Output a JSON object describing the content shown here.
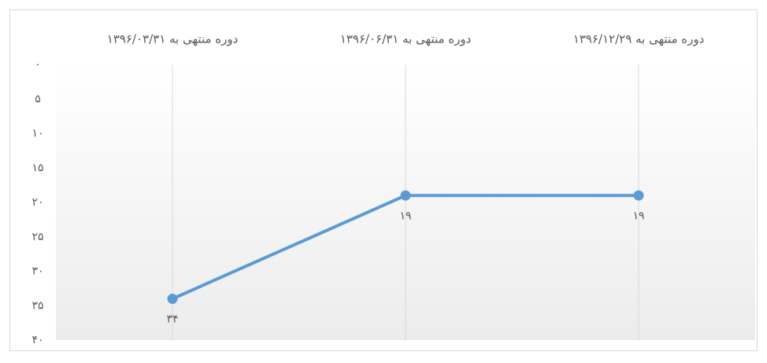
{
  "chart_data": {
    "type": "line",
    "categories": [
      "دوره منتهی به ۱۳۹۶/۰۳/۳۱",
      "دوره منتهی به ۱۳۹۶/۰۶/۳۱",
      "دوره منتهی به ۱۳۹۶/۱۲/۲۹"
    ],
    "series": [
      {
        "color": "#5b9bd5",
        "values": [
          34,
          19,
          19
        ],
        "value_labels": [
          "۳۴",
          "۱۹",
          "۱۹"
        ]
      }
    ],
    "ylim": [
      0,
      40
    ],
    "y_inverted": true,
    "yticks": [
      {
        "value": 0,
        "label": "۰"
      },
      {
        "value": 5,
        "label": "۵"
      },
      {
        "value": 10,
        "label": "۱۰"
      },
      {
        "value": 15,
        "label": "۱۵"
      },
      {
        "value": 20,
        "label": "۲۰"
      },
      {
        "value": 25,
        "label": "۲۵"
      },
      {
        "value": 30,
        "label": "۳۰"
      },
      {
        "value": 35,
        "label": "۳۵"
      },
      {
        "value": 40,
        "label": "۴۰"
      }
    ],
    "grid": true
  }
}
